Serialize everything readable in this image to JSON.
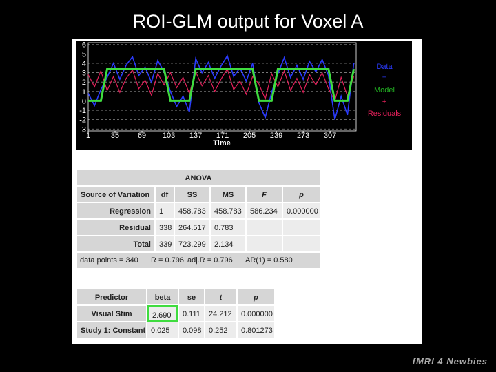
{
  "slide_title": "ROI-GLM output for Voxel A",
  "chart_data": {
    "type": "line",
    "x_label": "Time",
    "x": [
      1,
      9,
      17,
      25,
      33,
      41,
      49,
      57,
      65,
      73,
      81,
      89,
      97,
      105,
      113,
      121,
      129,
      137,
      145,
      153,
      161,
      169,
      177,
      185,
      193,
      201,
      209,
      217,
      225,
      233,
      241,
      249,
      257,
      265,
      273,
      281,
      289,
      297,
      305,
      313,
      321,
      329,
      337
    ],
    "xlim": [
      1,
      340
    ],
    "xticks": [
      1,
      35,
      69,
      103,
      137,
      171,
      205,
      239,
      273,
      307
    ],
    "ylim": [
      -3.2,
      6.2
    ],
    "yticks": [
      -3,
      -2,
      -1,
      0,
      1,
      2,
      3,
      4,
      5,
      6
    ],
    "grid": true,
    "series": [
      {
        "name": "Data",
        "color": "#2b3bff",
        "values": [
          0.8,
          -0.5,
          1.2,
          2.5,
          4.0,
          2.3,
          3.8,
          4.7,
          2.7,
          3.6,
          2.0,
          4.3,
          3.1,
          1.0,
          -0.6,
          0.5,
          -1.2,
          4.5,
          3.0,
          4.1,
          2.4,
          3.7,
          4.8,
          2.6,
          3.5,
          2.1,
          4.0,
          -0.2,
          -1.8,
          0.9,
          2.9,
          4.6,
          2.5,
          3.8,
          2.3,
          4.2,
          3.1,
          4.4,
          2.7,
          -2.0,
          0.5,
          -1.5,
          4.0
        ]
      },
      {
        "name": "Model",
        "color": "#3fdc3f",
        "values": [
          0,
          0,
          0,
          3.4,
          3.4,
          3.4,
          3.4,
          3.4,
          3.4,
          3.4,
          3.4,
          3.4,
          3.4,
          0,
          0,
          0,
          0,
          3.4,
          3.4,
          3.4,
          3.4,
          3.4,
          3.4,
          3.4,
          3.4,
          3.4,
          3.4,
          0,
          0,
          0,
          3.4,
          3.4,
          3.4,
          3.4,
          3.4,
          3.4,
          3.4,
          3.4,
          3.4,
          0,
          0,
          0,
          3.4
        ]
      },
      {
        "name": "Residuals",
        "color": "#e3205a",
        "values": [
          2.8,
          1.5,
          3.2,
          1.1,
          2.6,
          0.9,
          2.4,
          3.3,
          1.3,
          2.2,
          0.6,
          2.9,
          1.7,
          3.0,
          1.4,
          2.5,
          0.8,
          3.1,
          1.6,
          2.7,
          1.0,
          2.3,
          3.4,
          1.2,
          2.1,
          0.7,
          2.6,
          1.8,
          0.2,
          2.9,
          1.5,
          3.2,
          1.1,
          2.4,
          0.9,
          2.8,
          1.7,
          3.0,
          1.3,
          0.0,
          2.5,
          0.5,
          2.6
        ]
      }
    ],
    "legend_operators": [
      "=",
      "+"
    ]
  },
  "anova": {
    "title": "ANOVA",
    "columns": [
      "Source of Variation",
      "df",
      "SS",
      "MS",
      "F",
      "p"
    ],
    "rows": [
      [
        "Regression",
        "1",
        "458.783",
        "458.783",
        "586.234",
        "0.000000"
      ],
      [
        "Residual",
        "338",
        "264.517",
        "0.783"
      ],
      [
        "Total",
        "339",
        "723.299",
        "2.134"
      ]
    ],
    "footer": [
      "data points = 340",
      "R = 0.796",
      "adj.R = 0.796",
      "AR(1) = 0.580"
    ]
  },
  "predictors": {
    "columns": [
      "Predictor",
      "beta",
      "se",
      "t",
      "p"
    ],
    "rows": [
      [
        "Visual Stim",
        "2.690",
        "0.111",
        "24.212",
        "0.000000"
      ],
      [
        "Study 1: Constant",
        "0.025",
        "0.098",
        "0.252",
        "0.801273"
      ]
    ]
  },
  "logo": "fMRI 4 Newbies"
}
